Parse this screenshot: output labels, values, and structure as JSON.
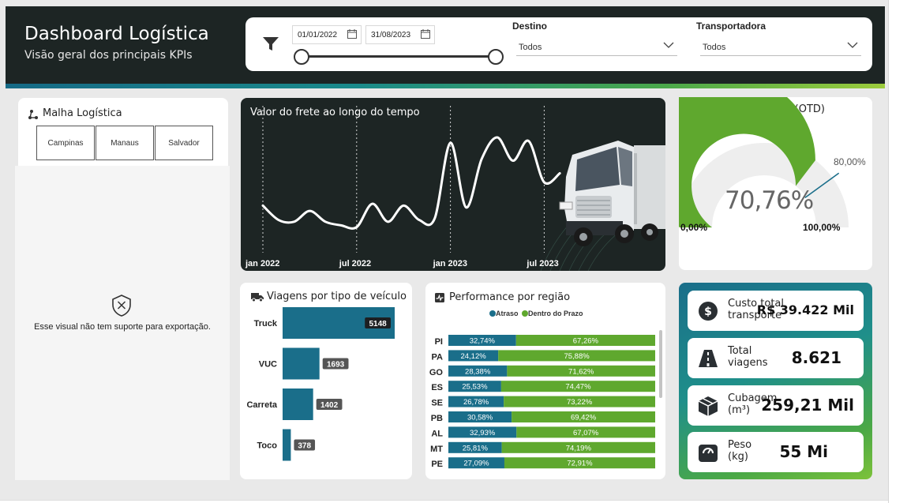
{
  "header": {
    "title": "Dashboard Logística",
    "subtitle": "Visão geral dos principais KPIs"
  },
  "filters": {
    "date_start": "01/01/2022",
    "date_end": "31/08/2023",
    "destino_label": "Destino",
    "destino_value": "Todos",
    "transportadora_label": "Transportadora",
    "transportadora_value": "Todos"
  },
  "malha": {
    "title": "Malha Logística",
    "buttons": [
      "Campinas",
      "Manaus",
      "Salvador"
    ],
    "unsupported_text": "Esse visual não tem suporte para exportação."
  },
  "frete": {
    "title": "Valor do frete ao longo do tempo",
    "x_ticks": [
      "jan 2022",
      "jul 2022",
      "jan 2023",
      "jul 2023"
    ]
  },
  "otd": {
    "title": "On Time Delivery (OTD)",
    "value_label": "70,76%",
    "target_label": "80,00%",
    "min_label": "0,00%",
    "max_label": "100,00%",
    "value": 70.76,
    "target": 80,
    "colors": {
      "fill": "#5fa82e",
      "track": "#eeeeee",
      "target": "#1a6e8a"
    }
  },
  "viagens": {
    "title": "Viagens por tipo de veículo"
  },
  "performance": {
    "title": "Performance por região",
    "legend": [
      "Atraso",
      "Dentro do Prazo"
    ],
    "colors": {
      "atraso": "#1a6e8a",
      "prazo": "#5fa82e"
    }
  },
  "kpis": [
    {
      "label_line1": "Custo total",
      "label_line2": "transporte",
      "value": "R$ 39.422 Mil",
      "icon": "dollar-icon"
    },
    {
      "label_line1": "Total",
      "label_line2": "viagens",
      "value": "8.621",
      "icon": "road-icon"
    },
    {
      "label_line1": "Cubagem",
      "label_line2": "(m³)",
      "value": "259,21 Mil",
      "icon": "box-icon"
    },
    {
      "label_line1": "Peso",
      "label_line2": "(kg)",
      "value": "55 Mi",
      "icon": "weight-icon"
    }
  ],
  "chart_data": [
    {
      "type": "line",
      "title": "Valor do frete ao longo do tempo",
      "x": [
        "2022-01",
        "2022-02",
        "2022-03",
        "2022-04",
        "2022-05",
        "2022-06",
        "2022-07",
        "2022-08",
        "2022-09",
        "2022-10",
        "2022-11",
        "2022-12",
        "2023-01",
        "2023-02",
        "2023-03",
        "2023-04",
        "2023-05",
        "2023-06",
        "2023-07",
        "2023-08"
      ],
      "x_ticks": [
        "jan 2022",
        "jul 2022",
        "jan 2023",
        "jul 2023"
      ],
      "values": [
        52,
        44,
        43,
        49,
        43,
        41,
        40,
        53,
        43,
        52,
        44,
        45,
        87,
        51,
        78,
        90,
        77,
        88,
        65,
        70
      ],
      "grid": false
    },
    {
      "type": "bar",
      "title": "Viagens por tipo de veículo",
      "categories": [
        "Truck",
        "VUC",
        "Carreta",
        "Toco"
      ],
      "values": [
        5148,
        1693,
        1402,
        378
      ],
      "orientation": "horizontal"
    },
    {
      "type": "bar",
      "title": "Performance por região",
      "stacked": true,
      "orientation": "horizontal",
      "categories": [
        "PI",
        "PA",
        "GO",
        "ES",
        "SE",
        "PB",
        "AL",
        "MT",
        "PE"
      ],
      "series": [
        {
          "name": "Atraso",
          "values": [
            32.74,
            24.12,
            28.38,
            25.53,
            26.78,
            30.58,
            32.93,
            25.81,
            27.09
          ],
          "labels": [
            "32,74%",
            "24,12%",
            "28,38%",
            "25,53%",
            "26,78%",
            "30,58%",
            "32,93%",
            "25,81%",
            "27,09%"
          ]
        },
        {
          "name": "Dentro do Prazo",
          "values": [
            67.26,
            75.88,
            71.62,
            74.47,
            73.22,
            69.42,
            67.07,
            74.19,
            72.91
          ],
          "labels": [
            "67,26%",
            "75,88%",
            "71,62%",
            "74,47%",
            "73,22%",
            "69,42%",
            "67,07%",
            "74,19%",
            "72,91%"
          ]
        }
      ],
      "legend": "top-center"
    },
    {
      "type": "gauge",
      "title": "On Time Delivery (OTD)",
      "value": 70.76,
      "target": 80,
      "min": 0,
      "max": 100
    }
  ]
}
